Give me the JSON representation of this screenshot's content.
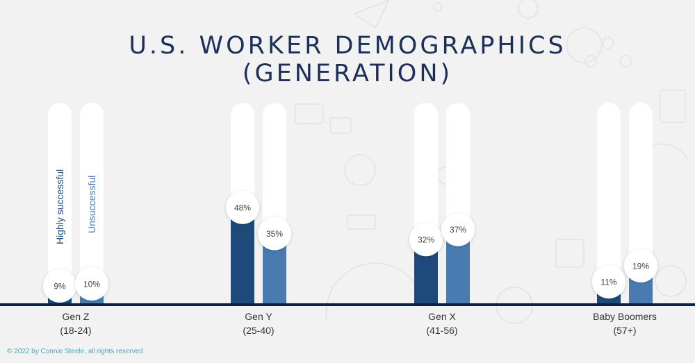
{
  "title_line1": "U.S. WORKER DEMOGRAPHICS",
  "title_line2": "(GENERATION)",
  "copyright": "© 2022 by Connie Steele, all rights reserved",
  "colors": {
    "highly_successful": "#1d4a7a",
    "unsuccessful": "#4a7bb0",
    "track": "#ffffff",
    "baseline": "#0d2240",
    "background": "#f2f2f2"
  },
  "chart_data": {
    "type": "bar",
    "categories": [
      "Gen Z",
      "Gen Y",
      "Gen X",
      "Baby Boomers"
    ],
    "category_ranges": [
      "(18-24)",
      "(25-40)",
      "(41-56)",
      "(57+)"
    ],
    "series": [
      {
        "name": "Highly successful",
        "values": [
          9,
          48,
          32,
          11
        ],
        "labels": [
          "9%",
          "48%",
          "32%",
          "11%"
        ]
      },
      {
        "name": "Unsuccessful",
        "values": [
          10,
          35,
          37,
          19
        ],
        "labels": [
          "10%",
          "35%",
          "37%",
          "19%"
        ]
      }
    ],
    "ylim": [
      0,
      100
    ],
    "unit": "%",
    "legend_placement": "inside first group (vertical text)"
  }
}
